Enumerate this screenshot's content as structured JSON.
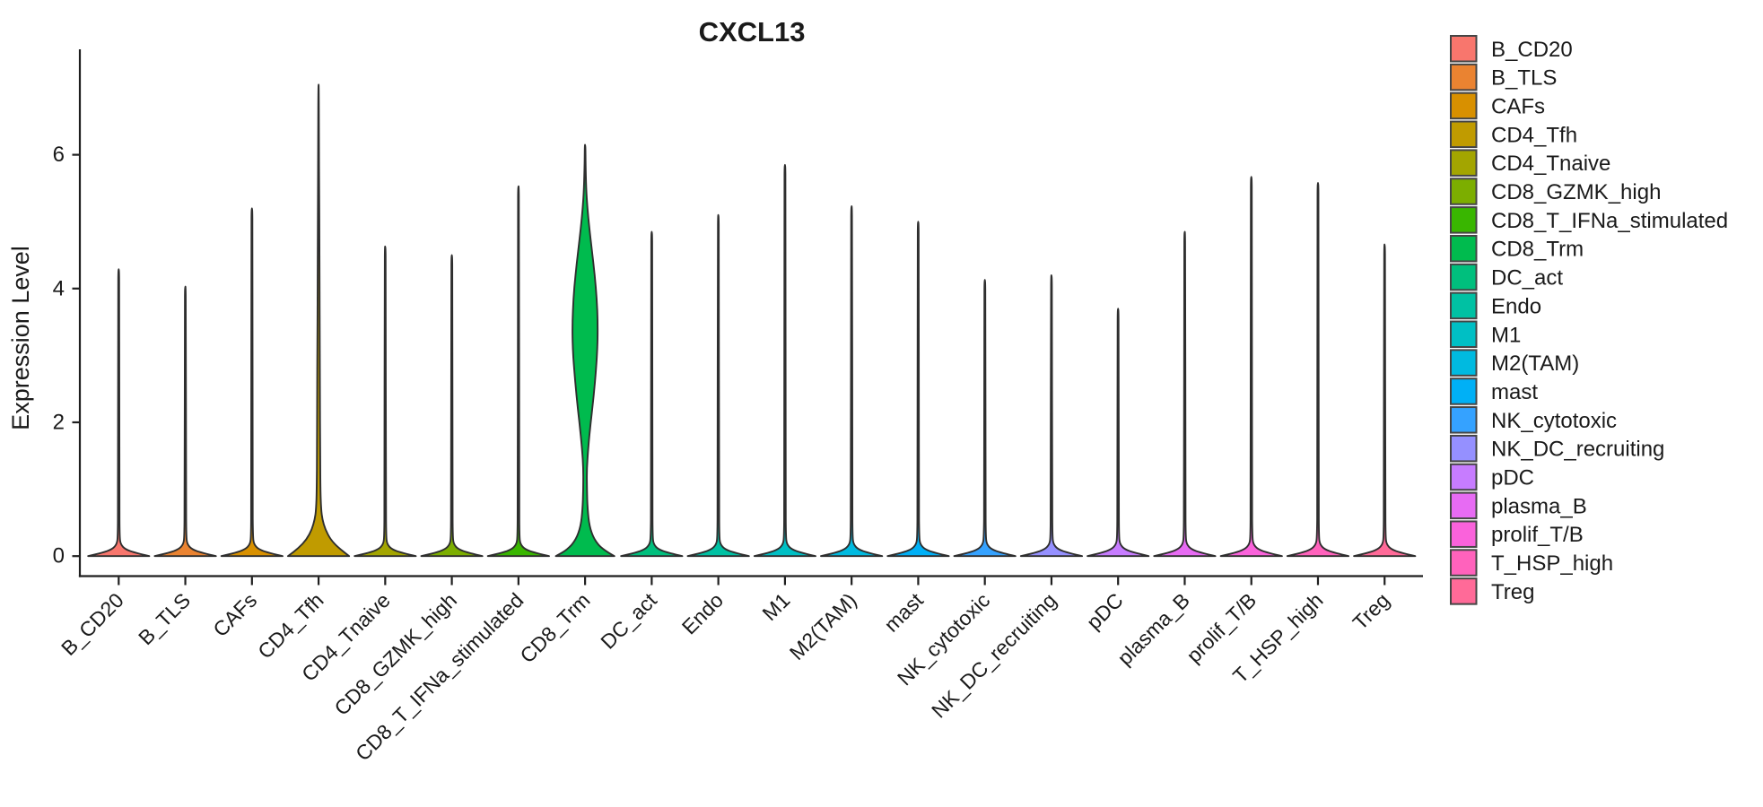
{
  "chart_data": {
    "type": "violin",
    "title": "CXCL13",
    "ylabel": "Expression Level",
    "xlabel": "",
    "y_ticks": [
      0,
      2,
      4,
      6
    ],
    "ylim": [
      -0.3,
      7.57
    ],
    "grid": "off",
    "legend_position": "right",
    "categories": [
      "B_CD20",
      "B_TLS",
      "CAFs",
      "CD4_Tfh",
      "CD4_Tnaive",
      "CD8_GZMK_high",
      "CD8_T_IFNa_stimulated",
      "CD8_Trm",
      "DC_act",
      "Endo",
      "M1",
      "M2(TAM)",
      "mast",
      "NK_cytotoxic",
      "NK_DC_recruiting",
      "pDC",
      "plasma_B",
      "prolif_T/B",
      "T_HSP_high",
      "Treg"
    ],
    "series": [
      {
        "name": "B_CD20",
        "color": "#F8766D",
        "max_expression": 4.29,
        "profile": [
          [
            0,
            0.92
          ],
          [
            0.05,
            0.5
          ],
          [
            0.1,
            0.2
          ],
          [
            0.18,
            0.055
          ],
          [
            0.3,
            0.028
          ],
          [
            0.8,
            0.022
          ],
          [
            3.99,
            0.016
          ],
          [
            4.29,
            0.01
          ]
        ]
      },
      {
        "name": "B_TLS",
        "color": "#EA8331",
        "max_expression": 4.03,
        "profile": [
          [
            0,
            0.92
          ],
          [
            0.05,
            0.5
          ],
          [
            0.1,
            0.2
          ],
          [
            0.18,
            0.055
          ],
          [
            0.3,
            0.028
          ],
          [
            0.8,
            0.022
          ],
          [
            3.73,
            0.016
          ],
          [
            4.03,
            0.01
          ]
        ]
      },
      {
        "name": "CAFs",
        "color": "#D89000",
        "max_expression": 5.2,
        "profile": [
          [
            0,
            0.92
          ],
          [
            0.05,
            0.5
          ],
          [
            0.1,
            0.2
          ],
          [
            0.18,
            0.055
          ],
          [
            0.3,
            0.028
          ],
          [
            0.8,
            0.022
          ],
          [
            4.9,
            0.016
          ],
          [
            5.2,
            0.01
          ]
        ]
      },
      {
        "name": "CD4_Tfh",
        "color": "#C09B00",
        "max_expression": 7.05,
        "profile": [
          [
            0,
            0.92
          ],
          [
            0.12,
            0.6
          ],
          [
            0.25,
            0.36
          ],
          [
            0.4,
            0.2
          ],
          [
            0.55,
            0.115
          ],
          [
            0.7,
            0.075
          ],
          [
            1.0,
            0.055
          ],
          [
            1.6,
            0.048
          ],
          [
            2.4,
            0.042
          ],
          [
            3.2,
            0.036
          ],
          [
            4.0,
            0.03
          ],
          [
            4.8,
            0.024
          ],
          [
            5.4,
            0.018
          ],
          [
            6.2,
            0.012
          ],
          [
            7.05,
            0.007
          ]
        ]
      },
      {
        "name": "CD4_Tnaive",
        "color": "#A3A500",
        "max_expression": 4.63,
        "profile": [
          [
            0,
            0.92
          ],
          [
            0.05,
            0.5
          ],
          [
            0.1,
            0.2
          ],
          [
            0.18,
            0.055
          ],
          [
            0.3,
            0.028
          ],
          [
            0.8,
            0.022
          ],
          [
            4.33,
            0.016
          ],
          [
            4.63,
            0.01
          ]
        ]
      },
      {
        "name": "CD8_GZMK_high",
        "color": "#7CAE00",
        "max_expression": 4.5,
        "profile": [
          [
            0,
            0.92
          ],
          [
            0.05,
            0.5
          ],
          [
            0.1,
            0.2
          ],
          [
            0.18,
            0.055
          ],
          [
            0.3,
            0.028
          ],
          [
            0.8,
            0.022
          ],
          [
            4.2,
            0.016
          ],
          [
            4.5,
            0.01
          ]
        ]
      },
      {
        "name": "CD8_T_IFNa_stimulated",
        "color": "#39B600",
        "max_expression": 5.53,
        "profile": [
          [
            0,
            0.92
          ],
          [
            0.05,
            0.5
          ],
          [
            0.1,
            0.2
          ],
          [
            0.18,
            0.055
          ],
          [
            0.3,
            0.028
          ],
          [
            0.8,
            0.022
          ],
          [
            5.23,
            0.016
          ],
          [
            5.53,
            0.01
          ]
        ]
      },
      {
        "name": "CD8_Trm",
        "color": "#00BB4E",
        "max_expression": 6.15,
        "profile": [
          [
            0,
            0.88
          ],
          [
            0.1,
            0.52
          ],
          [
            0.25,
            0.27
          ],
          [
            0.45,
            0.13
          ],
          [
            0.7,
            0.075
          ],
          [
            1.0,
            0.055
          ],
          [
            1.3,
            0.052
          ],
          [
            1.6,
            0.09
          ],
          [
            2.0,
            0.17
          ],
          [
            2.4,
            0.26
          ],
          [
            2.8,
            0.33
          ],
          [
            3.15,
            0.375
          ],
          [
            3.5,
            0.38
          ],
          [
            3.85,
            0.35
          ],
          [
            4.2,
            0.29
          ],
          [
            4.55,
            0.21
          ],
          [
            4.9,
            0.13
          ],
          [
            5.2,
            0.07
          ],
          [
            5.5,
            0.032
          ],
          [
            5.85,
            0.015
          ],
          [
            6.15,
            0.009
          ]
        ]
      },
      {
        "name": "DC_act",
        "color": "#00BF7D",
        "max_expression": 4.85,
        "profile": [
          [
            0,
            0.92
          ],
          [
            0.05,
            0.5
          ],
          [
            0.1,
            0.2
          ],
          [
            0.18,
            0.055
          ],
          [
            0.3,
            0.028
          ],
          [
            0.8,
            0.022
          ],
          [
            4.55,
            0.016
          ],
          [
            4.85,
            0.01
          ]
        ]
      },
      {
        "name": "Endo",
        "color": "#00C1A3",
        "max_expression": 5.1,
        "profile": [
          [
            0,
            0.92
          ],
          [
            0.05,
            0.5
          ],
          [
            0.1,
            0.2
          ],
          [
            0.18,
            0.055
          ],
          [
            0.3,
            0.028
          ],
          [
            0.8,
            0.022
          ],
          [
            4.8,
            0.016
          ],
          [
            5.1,
            0.01
          ]
        ]
      },
      {
        "name": "M1",
        "color": "#00BFC4",
        "max_expression": 5.85,
        "profile": [
          [
            0,
            0.92
          ],
          [
            0.05,
            0.5
          ],
          [
            0.1,
            0.2
          ],
          [
            0.18,
            0.055
          ],
          [
            0.3,
            0.028
          ],
          [
            0.8,
            0.022
          ],
          [
            5.55,
            0.016
          ],
          [
            5.85,
            0.01
          ]
        ]
      },
      {
        "name": "M2(TAM)",
        "color": "#00BAE0",
        "max_expression": 5.23,
        "profile": [
          [
            0,
            0.92
          ],
          [
            0.05,
            0.5
          ],
          [
            0.1,
            0.2
          ],
          [
            0.18,
            0.055
          ],
          [
            0.3,
            0.028
          ],
          [
            0.8,
            0.022
          ],
          [
            4.93,
            0.016
          ],
          [
            5.23,
            0.01
          ]
        ]
      },
      {
        "name": "mast",
        "color": "#00B0F6",
        "max_expression": 5.0,
        "profile": [
          [
            0,
            0.92
          ],
          [
            0.05,
            0.5
          ],
          [
            0.1,
            0.2
          ],
          [
            0.18,
            0.055
          ],
          [
            0.3,
            0.028
          ],
          [
            0.8,
            0.022
          ],
          [
            4.7,
            0.016
          ],
          [
            5.0,
            0.01
          ]
        ]
      },
      {
        "name": "NK_cytotoxic",
        "color": "#35A2FF",
        "max_expression": 4.13,
        "profile": [
          [
            0,
            0.92
          ],
          [
            0.05,
            0.5
          ],
          [
            0.1,
            0.2
          ],
          [
            0.18,
            0.055
          ],
          [
            0.3,
            0.028
          ],
          [
            0.8,
            0.022
          ],
          [
            3.83,
            0.016
          ],
          [
            4.13,
            0.01
          ]
        ]
      },
      {
        "name": "NK_DC_recruiting",
        "color": "#9590FF",
        "max_expression": 4.2,
        "profile": [
          [
            0,
            0.92
          ],
          [
            0.05,
            0.5
          ],
          [
            0.1,
            0.2
          ],
          [
            0.18,
            0.055
          ],
          [
            0.3,
            0.028
          ],
          [
            0.8,
            0.022
          ],
          [
            3.9,
            0.016
          ],
          [
            4.2,
            0.01
          ]
        ]
      },
      {
        "name": "pDC",
        "color": "#C77CFF",
        "max_expression": 3.7,
        "profile": [
          [
            0,
            0.92
          ],
          [
            0.05,
            0.5
          ],
          [
            0.1,
            0.2
          ],
          [
            0.18,
            0.055
          ],
          [
            0.3,
            0.028
          ],
          [
            0.8,
            0.022
          ],
          [
            3.4,
            0.016
          ],
          [
            3.7,
            0.01
          ]
        ]
      },
      {
        "name": "plasma_B",
        "color": "#E76BF3",
        "max_expression": 4.85,
        "profile": [
          [
            0,
            0.92
          ],
          [
            0.05,
            0.5
          ],
          [
            0.1,
            0.2
          ],
          [
            0.18,
            0.055
          ],
          [
            0.3,
            0.028
          ],
          [
            0.8,
            0.022
          ],
          [
            4.55,
            0.016
          ],
          [
            4.85,
            0.01
          ]
        ]
      },
      {
        "name": "prolif_T/B",
        "color": "#FA62DB",
        "max_expression": 5.67,
        "profile": [
          [
            0,
            0.92
          ],
          [
            0.05,
            0.5
          ],
          [
            0.1,
            0.2
          ],
          [
            0.18,
            0.055
          ],
          [
            0.3,
            0.028
          ],
          [
            0.8,
            0.022
          ],
          [
            5.37,
            0.016
          ],
          [
            5.67,
            0.01
          ]
        ]
      },
      {
        "name": "T_HSP_high",
        "color": "#FF62BC",
        "max_expression": 5.58,
        "profile": [
          [
            0,
            0.92
          ],
          [
            0.05,
            0.5
          ],
          [
            0.1,
            0.2
          ],
          [
            0.18,
            0.055
          ],
          [
            0.3,
            0.028
          ],
          [
            0.8,
            0.022
          ],
          [
            5.28,
            0.016
          ],
          [
            5.58,
            0.01
          ]
        ]
      },
      {
        "name": "Treg",
        "color": "#FF6A98",
        "max_expression": 4.66,
        "profile": [
          [
            0,
            0.92
          ],
          [
            0.05,
            0.5
          ],
          [
            0.1,
            0.2
          ],
          [
            0.18,
            0.055
          ],
          [
            0.3,
            0.028
          ],
          [
            0.8,
            0.022
          ],
          [
            4.36,
            0.016
          ],
          [
            4.66,
            0.01
          ]
        ]
      }
    ],
    "style": {
      "violin_outline_color": "#2e2e2e",
      "axis_color": "#1f1f1f",
      "text_color": "#1a1a1a",
      "legend_swatch_border": "#454545",
      "background": "#ffffff"
    }
  }
}
